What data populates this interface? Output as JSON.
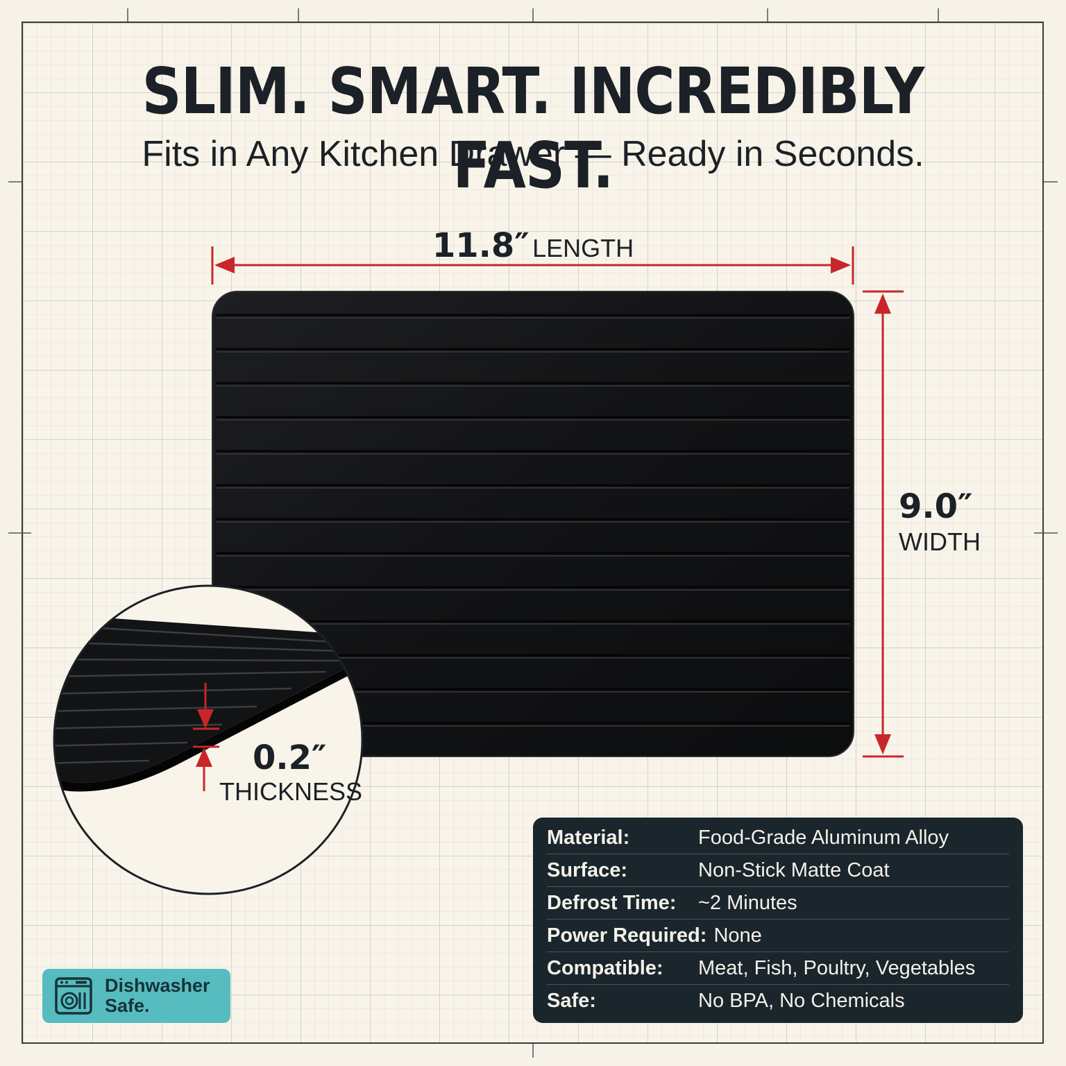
{
  "headline": "SLIM. SMART. INCREDIBLY FAST.",
  "subheadline": "Fits in Any Kitchen Drawer — Ready in Seconds.",
  "dimensions": {
    "length": {
      "value": "11.8″",
      "unit": "LENGTH"
    },
    "width": {
      "value": "9.0″",
      "unit": "WIDTH"
    },
    "thickness": {
      "value": "0.2″",
      "unit": "THICKNESS"
    }
  },
  "specs": [
    {
      "label": "Material:",
      "value": "Food-Grade Aluminum Alloy"
    },
    {
      "label": "Surface:",
      "value": "Non-Stick Matte Coat"
    },
    {
      "label": "Defrost Time:",
      "value": "~2 Minutes"
    },
    {
      "label": "Power Required:",
      "value": "None"
    },
    {
      "label": "Compatible:",
      "value": "Meat, Fish, Poultry, Vegetables"
    },
    {
      "label": "Safe:",
      "value": "No BPA, No Chemicals"
    }
  ],
  "badge": {
    "text": "Dishwasher\nSafe.",
    "icon": "dishwasher-icon"
  },
  "colors": {
    "accent_red": "#c8262a",
    "dark_navy": "#1a252c",
    "board_black": "#141517",
    "badge_teal": "#57bcbf",
    "background": "#f8f4ea"
  }
}
